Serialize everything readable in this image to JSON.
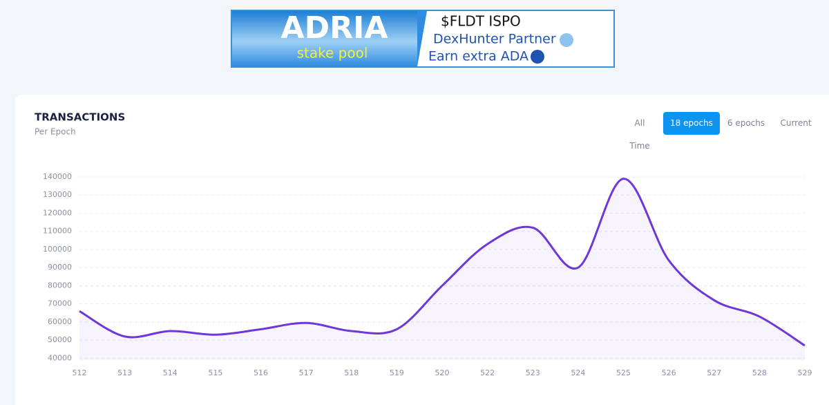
{
  "banner": {
    "title": "ADRIA",
    "subtitle": "stake pool",
    "line1": "$FLDT ISPO",
    "line2": "DexHunter Partner",
    "line3": "Earn extra ADA"
  },
  "buttons": [
    "All Time",
    "18 epochs",
    "6 epochs",
    "Current"
  ],
  "active_button": 1,
  "chart_data": {
    "type": "line",
    "title": "TRANSACTIONS",
    "subtitle": "Per Epoch",
    "categories": [
      "512",
      "513",
      "514",
      "515",
      "516",
      "517",
      "518",
      "519",
      "520",
      "522",
      "523",
      "524",
      "525",
      "526",
      "527",
      "528",
      "529"
    ],
    "series": [
      {
        "name": "Transactions",
        "color": "#6d37d9",
        "values": [
          66000,
          52000,
          55000,
          53000,
          56000,
          59500,
          55000,
          56000,
          80000,
          103000,
          112000,
          90000,
          139000,
          94000,
          72000,
          63000,
          47000
        ]
      }
    ],
    "ylim": [
      39000,
      140000
    ],
    "yticks": [
      40000,
      50000,
      60000,
      70000,
      80000,
      90000,
      100000,
      110000,
      120000,
      130000,
      140000
    ],
    "grid": true
  }
}
